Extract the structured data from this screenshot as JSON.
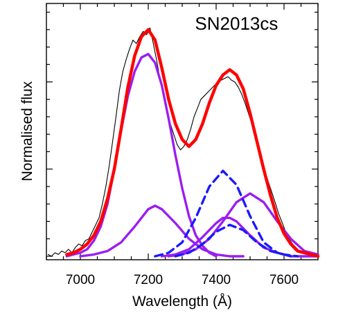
{
  "chart_data": {
    "type": "line",
    "title": "",
    "xlabel": "Wavelength (Å)",
    "ylabel": "Normalised flux",
    "xlim": [
      6900,
      7700
    ],
    "ylim": [
      -0.02,
      1.45
    ],
    "x_ticks": [
      7000,
      7200,
      7400,
      7600
    ],
    "x_tick_labels": [
      "7000",
      "7200",
      "7400",
      "7600"
    ],
    "y_major_ticks": [
      0.0,
      0.5,
      1.0
    ],
    "annotations": [
      {
        "text": "SN2013cs",
        "x": 7460,
        "y": 1.3
      }
    ],
    "series": [
      {
        "type": "observed",
        "color": "#000000",
        "x": [
          6905,
          6915,
          6925,
          6935,
          6945,
          6955,
          6965,
          6975,
          6985,
          6995,
          7005,
          7015,
          7025,
          7035,
          7045,
          7055,
          7065,
          7075,
          7085,
          7095,
          7105,
          7115,
          7125,
          7135,
          7145,
          7155,
          7165,
          7175,
          7185,
          7195,
          7205,
          7215,
          7225,
          7235,
          7245,
          7255,
          7265,
          7275,
          7285,
          7295,
          7305,
          7315,
          7325,
          7335,
          7345,
          7355,
          7365,
          7375,
          7385,
          7395,
          7405,
          7415,
          7425,
          7435,
          7445,
          7455,
          7465,
          7475,
          7485,
          7495,
          7505,
          7515,
          7525,
          7535,
          7545,
          7555,
          7565,
          7575,
          7585,
          7595,
          7605,
          7615,
          7625,
          7635,
          7645,
          7655,
          7665,
          7675,
          7685,
          7695
        ],
        "y": [
          0.01,
          0.0,
          0.02,
          0.01,
          0.03,
          0.02,
          0.04,
          0.02,
          0.05,
          0.07,
          0.06,
          0.09,
          0.1,
          0.14,
          0.18,
          0.22,
          0.3,
          0.4,
          0.52,
          0.66,
          0.8,
          0.95,
          1.06,
          1.13,
          1.19,
          1.24,
          1.22,
          1.26,
          1.29,
          1.27,
          1.31,
          1.22,
          1.12,
          1.01,
          0.93,
          0.83,
          0.76,
          0.7,
          0.64,
          0.61,
          0.63,
          0.67,
          0.73,
          0.8,
          0.85,
          0.9,
          0.92,
          0.94,
          0.96,
          0.98,
          1.0,
          1.01,
          1.02,
          1.03,
          1.01,
          1.0,
          0.97,
          0.93,
          0.88,
          0.82,
          0.76,
          0.69,
          0.62,
          0.55,
          0.48,
          0.42,
          0.36,
          0.3,
          0.24,
          0.19,
          0.14,
          0.1,
          0.07,
          0.05,
          0.03,
          0.02,
          0.01,
          0.01,
          0.0,
          0.0
        ]
      },
      {
        "type": "total-fit",
        "color": "#ff0000",
        "x": [
          6960,
          6980,
          7000,
          7020,
          7040,
          7060,
          7080,
          7100,
          7120,
          7140,
          7160,
          7180,
          7200,
          7220,
          7240,
          7260,
          7280,
          7300,
          7320,
          7340,
          7360,
          7380,
          7400,
          7420,
          7440,
          7460,
          7480,
          7500,
          7520,
          7540,
          7560,
          7580,
          7600,
          7620,
          7640,
          7660,
          7680,
          7700
        ],
        "y": [
          0.01,
          0.02,
          0.04,
          0.07,
          0.12,
          0.2,
          0.33,
          0.5,
          0.73,
          0.97,
          1.15,
          1.26,
          1.3,
          1.24,
          1.08,
          0.9,
          0.76,
          0.67,
          0.63,
          0.67,
          0.76,
          0.88,
          0.98,
          1.04,
          1.07,
          1.04,
          0.96,
          0.82,
          0.66,
          0.5,
          0.35,
          0.22,
          0.13,
          0.07,
          0.03,
          0.02,
          0.01,
          0.0
        ]
      },
      {
        "type": "component",
        "color": "#9a1df2",
        "x": [
          6960,
          6980,
          7000,
          7020,
          7040,
          7060,
          7080,
          7100,
          7120,
          7140,
          7160,
          7180,
          7200,
          7220,
          7240,
          7260,
          7280,
          7300,
          7320,
          7340,
          7360,
          7380,
          7400
        ],
        "y": [
          0.0,
          0.01,
          0.02,
          0.04,
          0.09,
          0.17,
          0.3,
          0.5,
          0.72,
          0.92,
          1.06,
          1.14,
          1.16,
          1.11,
          0.98,
          0.79,
          0.58,
          0.39,
          0.23,
          0.12,
          0.06,
          0.02,
          0.0
        ]
      },
      {
        "type": "component",
        "color": "#9a1df2",
        "x": [
          7000,
          7040,
          7080,
          7120,
          7160,
          7200,
          7220,
          7240,
          7280,
          7320,
          7360,
          7400,
          7440,
          7480
        ],
        "y": [
          0.0,
          0.01,
          0.03,
          0.08,
          0.17,
          0.27,
          0.29,
          0.27,
          0.19,
          0.1,
          0.04,
          0.01,
          0.0,
          0.0
        ]
      },
      {
        "type": "component",
        "color": "#9a1df2",
        "x": [
          7240,
          7280,
          7320,
          7360,
          7400,
          7420,
          7440,
          7460,
          7500,
          7540,
          7580,
          7620,
          7660,
          7700
        ],
        "y": [
          0.0,
          0.01,
          0.04,
          0.11,
          0.19,
          0.22,
          0.22,
          0.2,
          0.12,
          0.05,
          0.02,
          0.0,
          0.0,
          0.0
        ]
      },
      {
        "type": "component",
        "color": "#9a1df2",
        "x": [
          7260,
          7300,
          7340,
          7380,
          7420,
          7460,
          7500,
          7540,
          7580,
          7620,
          7660,
          7700
        ],
        "y": [
          0.0,
          0.01,
          0.04,
          0.1,
          0.2,
          0.31,
          0.36,
          0.31,
          0.2,
          0.1,
          0.03,
          0.01
        ]
      },
      {
        "type": "component-dashed",
        "color": "#1a1aff",
        "x": [
          7220,
          7260,
          7300,
          7340,
          7380,
          7420,
          7460,
          7500,
          7540,
          7580,
          7620
        ],
        "y": [
          0.0,
          0.02,
          0.08,
          0.22,
          0.4,
          0.49,
          0.41,
          0.23,
          0.08,
          0.02,
          0.0
        ]
      },
      {
        "type": "component-dashed",
        "color": "#1a1aff",
        "x": [
          7280,
          7320,
          7360,
          7400,
          7440,
          7480,
          7520,
          7560,
          7600,
          7640
        ],
        "y": [
          0.0,
          0.02,
          0.07,
          0.14,
          0.18,
          0.15,
          0.08,
          0.03,
          0.01,
          0.0
        ]
      }
    ]
  }
}
